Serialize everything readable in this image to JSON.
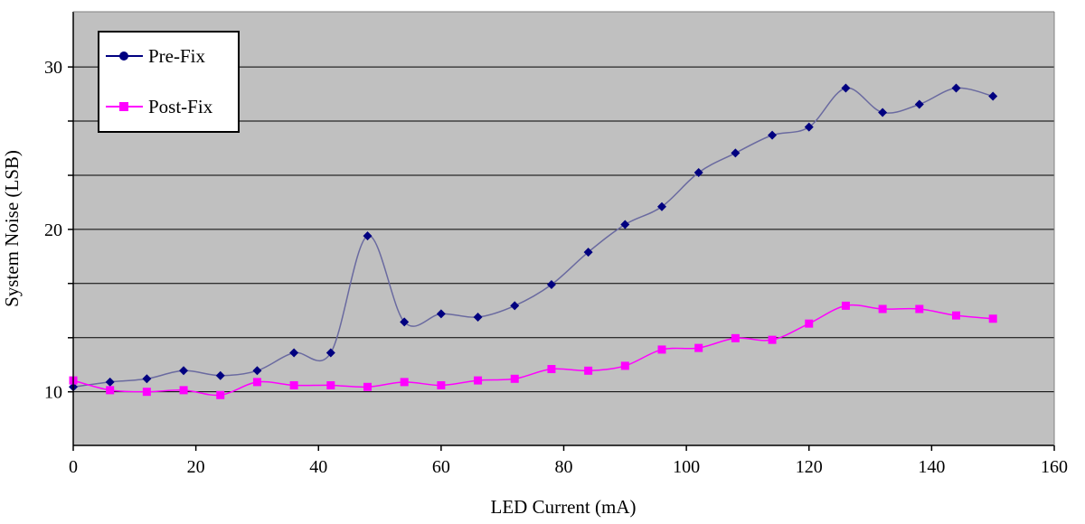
{
  "chart_data": {
    "type": "line",
    "title": "",
    "xlabel": "LED Current (mA)",
    "ylabel": "System Noise (LSB)",
    "xlim": [
      0,
      160
    ],
    "ylim": [
      6.7,
      33.4
    ],
    "xticks": [
      0,
      20,
      40,
      60,
      80,
      100,
      120,
      140,
      160
    ],
    "yticks": [
      10,
      20,
      30
    ],
    "ygrid": [
      10,
      13.33,
      16.67,
      20,
      23.33,
      26.67,
      30
    ],
    "grid": "horizontal",
    "plot_background": "#c0c0c0",
    "legend": "top-left",
    "series": [
      {
        "name": "Pre-Fix",
        "color": "#000080",
        "marker": "diamond",
        "legend_marker": "circle",
        "x": [
          0,
          6,
          12,
          18,
          24,
          30,
          36,
          42,
          48,
          54,
          60,
          66,
          72,
          78,
          84,
          90,
          96,
          102,
          108,
          114,
          120,
          126,
          132,
          138,
          144,
          150
        ],
        "y": [
          10.3,
          10.6,
          10.8,
          11.3,
          11.0,
          11.3,
          12.4,
          12.4,
          19.6,
          14.3,
          14.8,
          14.6,
          15.3,
          16.6,
          18.6,
          20.3,
          21.4,
          23.5,
          24.7,
          25.8,
          26.3,
          28.7,
          27.2,
          27.7,
          28.7,
          28.2
        ]
      },
      {
        "name": "Post-Fix",
        "color": "#ff00ff",
        "marker": "square",
        "legend_marker": "square",
        "x": [
          0,
          6,
          12,
          18,
          24,
          30,
          36,
          42,
          48,
          54,
          60,
          66,
          72,
          78,
          84,
          90,
          96,
          102,
          108,
          114,
          120,
          126,
          132,
          138,
          144,
          150
        ],
        "y": [
          10.7,
          10.1,
          10.0,
          10.1,
          9.8,
          10.6,
          10.4,
          10.4,
          10.3,
          10.6,
          10.4,
          10.7,
          10.8,
          11.4,
          11.3,
          11.6,
          12.6,
          12.7,
          13.3,
          13.2,
          14.2,
          15.3,
          15.1,
          15.1,
          14.7,
          14.5
        ]
      }
    ]
  }
}
